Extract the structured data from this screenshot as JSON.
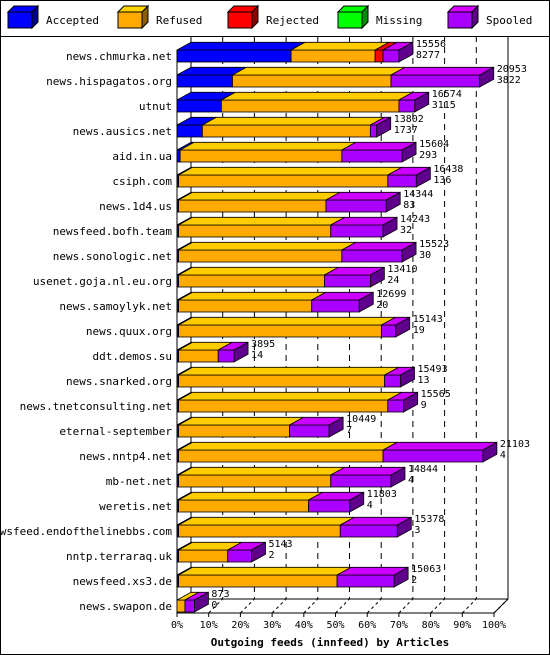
{
  "chart_data": {
    "type": "bar",
    "orientation": "horizontal",
    "stacked": true,
    "style": "3d",
    "xlabel": "Outgoing feeds (innfeed) by Articles",
    "xlim": [
      0,
      100
    ],
    "x_ticks": [
      "0%",
      "10%",
      "20%",
      "30%",
      "40%",
      "50%",
      "60%",
      "70%",
      "80%",
      "90%",
      "100%"
    ],
    "legend_position": "top",
    "legend": [
      {
        "name": "Accepted",
        "color": "#0000ff"
      },
      {
        "name": "Refused",
        "color": "#ffaa00"
      },
      {
        "name": "Rejected",
        "color": "#ff0000"
      },
      {
        "name": "Missing",
        "color": "#00ff00"
      },
      {
        "name": "Spooled",
        "color": "#aa00ff"
      }
    ],
    "categories": [
      {
        "name": "news.chmurka.net",
        "total": "15556",
        "accepted": "8277",
        "percent": {
          "accepted": 36,
          "refused": 26.5,
          "rejected": 2.5,
          "missing": 0,
          "spooled": 5
        }
      },
      {
        "name": "news.hispagatos.org",
        "total": "20953",
        "accepted": "3822",
        "percent": {
          "accepted": 17.5,
          "refused": 50,
          "rejected": 0,
          "missing": 0,
          "spooled": 28
        }
      },
      {
        "name": "utnut",
        "total": "16574",
        "accepted": "3115",
        "percent": {
          "accepted": 14,
          "refused": 56,
          "rejected": 0,
          "missing": 0,
          "spooled": 5
        }
      },
      {
        "name": "news.ausics.net",
        "total": "13802",
        "accepted": "1737",
        "percent": {
          "accepted": 8,
          "refused": 53,
          "rejected": 0,
          "missing": 0,
          "spooled": 2
        }
      },
      {
        "name": "aid.in.ua",
        "total": "15604",
        "accepted": "293",
        "percent": {
          "accepted": 1,
          "refused": 51,
          "rejected": 0,
          "missing": 0,
          "spooled": 19
        }
      },
      {
        "name": "csiph.com",
        "total": "16438",
        "accepted": "136",
        "percent": {
          "accepted": 0.5,
          "refused": 66,
          "rejected": 0,
          "missing": 0,
          "spooled": 9
        }
      },
      {
        "name": "news.1d4.us",
        "total": "14344",
        "accepted": "83",
        "percent": {
          "accepted": 0.5,
          "refused": 46.5,
          "rejected": 0,
          "missing": 0,
          "spooled": 19
        }
      },
      {
        "name": "newsfeed.bofh.team",
        "total": "14243",
        "accepted": "32",
        "percent": {
          "accepted": 0.5,
          "refused": 48,
          "rejected": 0,
          "missing": 0,
          "spooled": 16.5
        }
      },
      {
        "name": "news.sonologic.net",
        "total": "15523",
        "accepted": "30",
        "percent": {
          "accepted": 0.5,
          "refused": 51.5,
          "rejected": 0,
          "missing": 0,
          "spooled": 19
        }
      },
      {
        "name": "usenet.goja.nl.eu.org",
        "total": "13410",
        "accepted": "24",
        "percent": {
          "accepted": 0.5,
          "refused": 46,
          "rejected": 0,
          "missing": 0,
          "spooled": 14.5
        }
      },
      {
        "name": "news.samoylyk.net",
        "total": "12699",
        "accepted": "20",
        "percent": {
          "accepted": 0.5,
          "refused": 42,
          "rejected": 0,
          "missing": 0,
          "spooled": 15
        }
      },
      {
        "name": "news.quux.org",
        "total": "15143",
        "accepted": "19",
        "percent": {
          "accepted": 0.5,
          "refused": 64,
          "rejected": 0,
          "missing": 0,
          "spooled": 4.5
        }
      },
      {
        "name": "ddt.demos.su",
        "total": "3895",
        "accepted": "14",
        "percent": {
          "accepted": 0.5,
          "refused": 12.5,
          "rejected": 0,
          "missing": 0,
          "spooled": 5
        }
      },
      {
        "name": "news.snarked.org",
        "total": "15493",
        "accepted": "13",
        "percent": {
          "accepted": 0.5,
          "refused": 65,
          "rejected": 0,
          "missing": 0,
          "spooled": 5
        }
      },
      {
        "name": "news.tnetconsulting.net",
        "total": "15565",
        "accepted": "9",
        "percent": {
          "accepted": 0.5,
          "refused": 66,
          "rejected": 0,
          "missing": 0,
          "spooled": 5
        }
      },
      {
        "name": "eternal-september",
        "total": "10449",
        "accepted": "7",
        "percent": {
          "accepted": 0.5,
          "refused": 35,
          "rejected": 0,
          "missing": 0,
          "spooled": 12.5
        }
      },
      {
        "name": "news.nntp4.net",
        "total": "21103",
        "accepted": "4",
        "percent": {
          "accepted": 0.5,
          "refused": 64.5,
          "rejected": 0,
          "missing": 0,
          "spooled": 31.5
        }
      },
      {
        "name": "mb-net.net",
        "total": "14844",
        "accepted": "4",
        "percent": {
          "accepted": 0.5,
          "refused": 48,
          "rejected": 0,
          "missing": 0,
          "spooled": 19
        }
      },
      {
        "name": "weretis.net",
        "total": "11803",
        "accepted": "4",
        "percent": {
          "accepted": 0.5,
          "refused": 41,
          "rejected": 0,
          "missing": 0,
          "spooled": 13
        }
      },
      {
        "name": "newsfeed.endofthelinebbs.com",
        "total": "15378",
        "accepted": "3",
        "percent": {
          "accepted": 0.5,
          "refused": 51,
          "rejected": 0,
          "missing": 0,
          "spooled": 18
        }
      },
      {
        "name": "nntp.terraraq.uk",
        "total": "5143",
        "accepted": "2",
        "percent": {
          "accepted": 0.5,
          "refused": 15.5,
          "rejected": 0,
          "missing": 0,
          "spooled": 7.5
        }
      },
      {
        "name": "newsfeed.xs3.de",
        "total": "15063",
        "accepted": "2",
        "percent": {
          "accepted": 0.5,
          "refused": 50,
          "rejected": 0,
          "missing": 0,
          "spooled": 18
        }
      },
      {
        "name": "news.swapon.de",
        "total": "873",
        "accepted": "0",
        "percent": {
          "accepted": 0,
          "refused": 2.5,
          "rejected": 0,
          "missing": 0,
          "spooled": 3
        }
      }
    ]
  }
}
